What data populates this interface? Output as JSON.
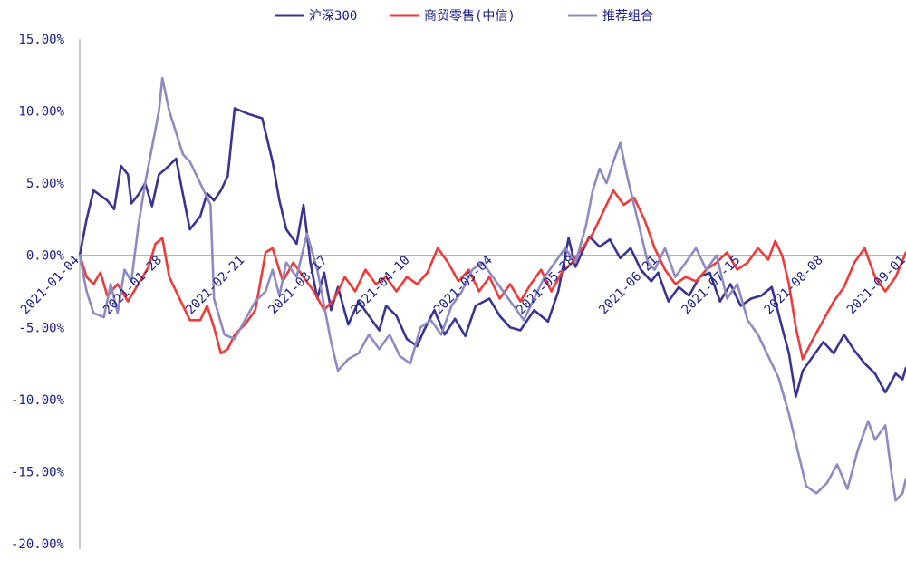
{
  "chart_data": {
    "type": "line",
    "title": "",
    "xlabel": "",
    "ylabel": "",
    "ylim": [
      -20,
      15
    ],
    "y_ticks": [
      "15.00%",
      "10.00%",
      "5.00%",
      "0.00%",
      "-5.00%",
      "-10.00%",
      "-15.00%",
      "-20.00%"
    ],
    "y_tick_values": [
      15,
      10,
      5,
      0,
      -5,
      -10,
      -15,
      -20
    ],
    "x_ticks": [
      "2021-01-04",
      "2021-01-28",
      "2021-02-21",
      "2021-03-17",
      "2021-04-10",
      "2021-05-04",
      "2021-05-28",
      "2021-06-21",
      "2021-07-15",
      "2021-08-08",
      "2021-09-01"
    ],
    "x_range": [
      "2021-01-04",
      "2021-09-01"
    ],
    "legend_position": "top",
    "grid": false,
    "zero_line": true,
    "series": [
      {
        "name": "沪深300",
        "color": "#3b3493",
        "points": [
          [
            "2021-01-04",
            0.0
          ],
          [
            "2021-01-06",
            2.5
          ],
          [
            "2021-01-08",
            4.5
          ],
          [
            "2021-01-12",
            3.8
          ],
          [
            "2021-01-14",
            3.2
          ],
          [
            "2021-01-16",
            6.2
          ],
          [
            "2021-01-18",
            5.6
          ],
          [
            "2021-01-19",
            3.6
          ],
          [
            "2021-01-21",
            4.2
          ],
          [
            "2021-01-23",
            5.0
          ],
          [
            "2021-01-25",
            3.4
          ],
          [
            "2021-01-27",
            5.6
          ],
          [
            "2021-01-29",
            6.0
          ],
          [
            "2021-02-01",
            6.7
          ],
          [
            "2021-02-03",
            4.2
          ],
          [
            "2021-02-05",
            1.8
          ],
          [
            "2021-02-08",
            2.7
          ],
          [
            "2021-02-10",
            4.3
          ],
          [
            "2021-02-12",
            3.8
          ],
          [
            "2021-02-14",
            4.5
          ],
          [
            "2021-02-16",
            5.5
          ],
          [
            "2021-02-18",
            10.2
          ],
          [
            "2021-02-22",
            9.8
          ],
          [
            "2021-02-26",
            9.5
          ],
          [
            "2021-03-01",
            6.5
          ],
          [
            "2021-03-03",
            3.8
          ],
          [
            "2021-03-05",
            1.8
          ],
          [
            "2021-03-08",
            0.8
          ],
          [
            "2021-03-10",
            3.5
          ],
          [
            "2021-03-12",
            -0.5
          ],
          [
            "2021-03-14",
            -3.0
          ],
          [
            "2021-03-16",
            -1.2
          ],
          [
            "2021-03-18",
            -3.8
          ],
          [
            "2021-03-20",
            -2.2
          ],
          [
            "2021-03-23",
            -4.8
          ],
          [
            "2021-03-26",
            -3.2
          ],
          [
            "2021-03-29",
            -4.2
          ],
          [
            "2021-04-01",
            -5.2
          ],
          [
            "2021-04-03",
            -3.5
          ],
          [
            "2021-04-06",
            -4.2
          ],
          [
            "2021-04-09",
            -5.8
          ],
          [
            "2021-04-12",
            -6.3
          ],
          [
            "2021-04-14",
            -5.2
          ],
          [
            "2021-04-17",
            -3.8
          ],
          [
            "2021-04-20",
            -5.5
          ],
          [
            "2021-04-23",
            -4.4
          ],
          [
            "2021-04-26",
            -5.6
          ],
          [
            "2021-04-29",
            -3.5
          ],
          [
            "2021-05-03",
            -3.0
          ],
          [
            "2021-05-06",
            -4.2
          ],
          [
            "2021-05-09",
            -5.0
          ],
          [
            "2021-05-12",
            -5.2
          ],
          [
            "2021-05-16",
            -3.8
          ],
          [
            "2021-05-20",
            -4.6
          ],
          [
            "2021-05-23",
            -2.5
          ],
          [
            "2021-05-26",
            1.2
          ],
          [
            "2021-05-28",
            -0.8
          ],
          [
            "2021-06-01",
            1.3
          ],
          [
            "2021-06-04",
            0.6
          ],
          [
            "2021-06-07",
            1.1
          ],
          [
            "2021-06-10",
            -0.2
          ],
          [
            "2021-06-13",
            0.5
          ],
          [
            "2021-06-16",
            -1.0
          ],
          [
            "2021-06-19",
            -1.8
          ],
          [
            "2021-06-21",
            -1.2
          ],
          [
            "2021-06-24",
            -3.2
          ],
          [
            "2021-06-27",
            -2.2
          ],
          [
            "2021-06-30",
            -2.8
          ],
          [
            "2021-07-03",
            -1.5
          ],
          [
            "2021-07-06",
            -1.2
          ],
          [
            "2021-07-09",
            -3.2
          ],
          [
            "2021-07-12",
            -2.0
          ],
          [
            "2021-07-15",
            -3.5
          ],
          [
            "2021-07-18",
            -3.0
          ],
          [
            "2021-07-21",
            -2.8
          ],
          [
            "2021-07-24",
            -2.2
          ],
          [
            "2021-07-27",
            -5.0
          ],
          [
            "2021-07-29",
            -6.8
          ],
          [
            "2021-07-31",
            -9.8
          ],
          [
            "2021-08-02",
            -8.0
          ],
          [
            "2021-08-05",
            -7.0
          ],
          [
            "2021-08-08",
            -6.0
          ],
          [
            "2021-08-11",
            -6.8
          ],
          [
            "2021-08-14",
            -5.5
          ],
          [
            "2021-08-17",
            -6.6
          ],
          [
            "2021-08-20",
            -7.5
          ],
          [
            "2021-08-23",
            -8.2
          ],
          [
            "2021-08-26",
            -9.5
          ],
          [
            "2021-08-29",
            -8.2
          ],
          [
            "2021-08-31",
            -8.6
          ],
          [
            "2021-09-01",
            -7.8
          ]
        ]
      },
      {
        "name": "商贸零售(中信)",
        "color": "#ee3a39",
        "points": [
          [
            "2021-01-04",
            0.0
          ],
          [
            "2021-01-06",
            -1.5
          ],
          [
            "2021-01-08",
            -2.0
          ],
          [
            "2021-01-10",
            -1.2
          ],
          [
            "2021-01-12",
            -2.8
          ],
          [
            "2021-01-15",
            -2.0
          ],
          [
            "2021-01-18",
            -3.2
          ],
          [
            "2021-01-21",
            -2.0
          ],
          [
            "2021-01-24",
            -0.8
          ],
          [
            "2021-01-26",
            0.8
          ],
          [
            "2021-01-28",
            1.2
          ],
          [
            "2021-01-30",
            -1.5
          ],
          [
            "2021-02-02",
            -3.0
          ],
          [
            "2021-02-05",
            -4.5
          ],
          [
            "2021-02-08",
            -4.5
          ],
          [
            "2021-02-10",
            -3.5
          ],
          [
            "2021-02-12",
            -5.0
          ],
          [
            "2021-02-14",
            -6.8
          ],
          [
            "2021-02-16",
            -6.5
          ],
          [
            "2021-02-18",
            -5.5
          ],
          [
            "2021-02-21",
            -4.8
          ],
          [
            "2021-02-24",
            -3.8
          ],
          [
            "2021-02-27",
            0.2
          ],
          [
            "2021-03-01",
            0.5
          ],
          [
            "2021-03-04",
            -1.8
          ],
          [
            "2021-03-07",
            -0.5
          ],
          [
            "2021-03-10",
            -1.5
          ],
          [
            "2021-03-13",
            -2.5
          ],
          [
            "2021-03-16",
            -3.8
          ],
          [
            "2021-03-19",
            -3.0
          ],
          [
            "2021-03-22",
            -1.5
          ],
          [
            "2021-03-25",
            -2.5
          ],
          [
            "2021-03-28",
            -1.0
          ],
          [
            "2021-03-31",
            -2.0
          ],
          [
            "2021-04-03",
            -1.5
          ],
          [
            "2021-04-06",
            -2.5
          ],
          [
            "2021-04-09",
            -1.5
          ],
          [
            "2021-04-12",
            -2.0
          ],
          [
            "2021-04-15",
            -1.2
          ],
          [
            "2021-04-18",
            0.5
          ],
          [
            "2021-04-21",
            -0.5
          ],
          [
            "2021-04-24",
            -1.8
          ],
          [
            "2021-04-27",
            -1.0
          ],
          [
            "2021-04-30",
            -2.5
          ],
          [
            "2021-05-03",
            -1.5
          ],
          [
            "2021-05-06",
            -3.0
          ],
          [
            "2021-05-09",
            -2.0
          ],
          [
            "2021-05-12",
            -3.2
          ],
          [
            "2021-05-15",
            -2.0
          ],
          [
            "2021-05-18",
            -1.0
          ],
          [
            "2021-05-21",
            -2.5
          ],
          [
            "2021-05-24",
            -1.2
          ],
          [
            "2021-05-27",
            -0.5
          ],
          [
            "2021-05-30",
            0.5
          ],
          [
            "2021-06-02",
            1.5
          ],
          [
            "2021-06-05",
            3.0
          ],
          [
            "2021-06-08",
            4.5
          ],
          [
            "2021-06-11",
            3.5
          ],
          [
            "2021-06-14",
            4.0
          ],
          [
            "2021-06-17",
            2.5
          ],
          [
            "2021-06-20",
            0.5
          ],
          [
            "2021-06-23",
            -1.0
          ],
          [
            "2021-06-26",
            -2.0
          ],
          [
            "2021-06-29",
            -1.5
          ],
          [
            "2021-07-02",
            -1.8
          ],
          [
            "2021-07-05",
            -1.0
          ],
          [
            "2021-07-08",
            -0.5
          ],
          [
            "2021-07-11",
            0.2
          ],
          [
            "2021-07-14",
            -1.0
          ],
          [
            "2021-07-17",
            -0.5
          ],
          [
            "2021-07-20",
            0.5
          ],
          [
            "2021-07-23",
            -0.3
          ],
          [
            "2021-07-25",
            1.0
          ],
          [
            "2021-07-27",
            0.0
          ],
          [
            "2021-07-29",
            -2.0
          ],
          [
            "2021-07-31",
            -5.0
          ],
          [
            "2021-08-02",
            -7.2
          ],
          [
            "2021-08-05",
            -5.8
          ],
          [
            "2021-08-08",
            -4.5
          ],
          [
            "2021-08-11",
            -3.2
          ],
          [
            "2021-08-14",
            -2.2
          ],
          [
            "2021-08-17",
            -0.5
          ],
          [
            "2021-08-20",
            0.5
          ],
          [
            "2021-08-23",
            -1.5
          ],
          [
            "2021-08-26",
            -2.5
          ],
          [
            "2021-08-29",
            -1.5
          ],
          [
            "2021-09-01",
            0.2
          ]
        ]
      },
      {
        "name": "推荐组合",
        "color": "#8e8ac2",
        "points": [
          [
            "2021-01-04",
            0.0
          ],
          [
            "2021-01-06",
            -2.5
          ],
          [
            "2021-01-08",
            -4.0
          ],
          [
            "2021-01-11",
            -4.3
          ],
          [
            "2021-01-13",
            -2.0
          ],
          [
            "2021-01-15",
            -4.0
          ],
          [
            "2021-01-17",
            -1.0
          ],
          [
            "2021-01-19",
            -1.8
          ],
          [
            "2021-01-21",
            2.0
          ],
          [
            "2021-01-23",
            5.0
          ],
          [
            "2021-01-25",
            7.5
          ],
          [
            "2021-01-27",
            10.0
          ],
          [
            "2021-01-28",
            12.3
          ],
          [
            "2021-01-30",
            10.0
          ],
          [
            "2021-02-01",
            8.5
          ],
          [
            "2021-02-03",
            7.0
          ],
          [
            "2021-02-05",
            6.5
          ],
          [
            "2021-02-07",
            5.5
          ],
          [
            "2021-02-09",
            4.5
          ],
          [
            "2021-02-11",
            3.5
          ],
          [
            "2021-02-12",
            -3.0
          ],
          [
            "2021-02-15",
            -5.5
          ],
          [
            "2021-02-18",
            -5.8
          ],
          [
            "2021-02-21",
            -4.5
          ],
          [
            "2021-02-24",
            -3.2
          ],
          [
            "2021-02-27",
            -2.5
          ],
          [
            "2021-03-01",
            -1.0
          ],
          [
            "2021-03-03",
            -2.8
          ],
          [
            "2021-03-05",
            -0.5
          ],
          [
            "2021-03-08",
            -1.5
          ],
          [
            "2021-03-11",
            1.5
          ],
          [
            "2021-03-14",
            -1.0
          ],
          [
            "2021-03-16",
            -3.5
          ],
          [
            "2021-03-18",
            -6.0
          ],
          [
            "2021-03-20",
            -8.0
          ],
          [
            "2021-03-23",
            -7.2
          ],
          [
            "2021-03-26",
            -6.8
          ],
          [
            "2021-03-29",
            -5.5
          ],
          [
            "2021-04-01",
            -6.5
          ],
          [
            "2021-04-04",
            -5.5
          ],
          [
            "2021-04-07",
            -7.0
          ],
          [
            "2021-04-10",
            -7.5
          ],
          [
            "2021-04-13",
            -5.0
          ],
          [
            "2021-04-16",
            -4.5
          ],
          [
            "2021-04-19",
            -5.5
          ],
          [
            "2021-04-22",
            -3.5
          ],
          [
            "2021-04-25",
            -2.5
          ],
          [
            "2021-04-28",
            -1.0
          ],
          [
            "2021-05-01",
            -0.5
          ],
          [
            "2021-05-04",
            -1.5
          ],
          [
            "2021-05-07",
            -2.5
          ],
          [
            "2021-05-10",
            -3.5
          ],
          [
            "2021-05-13",
            -4.5
          ],
          [
            "2021-05-16",
            -3.0
          ],
          [
            "2021-05-19",
            -1.5
          ],
          [
            "2021-05-22",
            -0.5
          ],
          [
            "2021-05-25",
            0.5
          ],
          [
            "2021-05-28",
            -0.5
          ],
          [
            "2021-05-31",
            2.0
          ],
          [
            "2021-06-02",
            4.5
          ],
          [
            "2021-06-04",
            6.0
          ],
          [
            "2021-06-06",
            5.0
          ],
          [
            "2021-06-08",
            6.5
          ],
          [
            "2021-06-10",
            7.8
          ],
          [
            "2021-06-12",
            5.5
          ],
          [
            "2021-06-14",
            3.5
          ],
          [
            "2021-06-16",
            1.5
          ],
          [
            "2021-06-18",
            -0.5
          ],
          [
            "2021-06-20",
            -1.0
          ],
          [
            "2021-06-23",
            0.5
          ],
          [
            "2021-06-26",
            -1.5
          ],
          [
            "2021-06-29",
            -0.5
          ],
          [
            "2021-07-02",
            0.5
          ],
          [
            "2021-07-05",
            -1.0
          ],
          [
            "2021-07-08",
            0.0
          ],
          [
            "2021-07-11",
            -3.0
          ],
          [
            "2021-07-14",
            -2.0
          ],
          [
            "2021-07-17",
            -4.5
          ],
          [
            "2021-07-20",
            -5.5
          ],
          [
            "2021-07-23",
            -7.0
          ],
          [
            "2021-07-26",
            -8.5
          ],
          [
            "2021-07-29",
            -11.0
          ],
          [
            "2021-08-01",
            -14.0
          ],
          [
            "2021-08-03",
            -16.0
          ],
          [
            "2021-08-06",
            -16.5
          ],
          [
            "2021-08-09",
            -15.8
          ],
          [
            "2021-08-12",
            -14.5
          ],
          [
            "2021-08-15",
            -16.2
          ],
          [
            "2021-08-18",
            -13.5
          ],
          [
            "2021-08-21",
            -11.5
          ],
          [
            "2021-08-23",
            -12.8
          ],
          [
            "2021-08-26",
            -11.8
          ],
          [
            "2021-08-28",
            -15.5
          ],
          [
            "2021-08-29",
            -17.0
          ],
          [
            "2021-08-31",
            -16.5
          ],
          [
            "2021-09-01",
            -15.5
          ]
        ]
      }
    ]
  }
}
